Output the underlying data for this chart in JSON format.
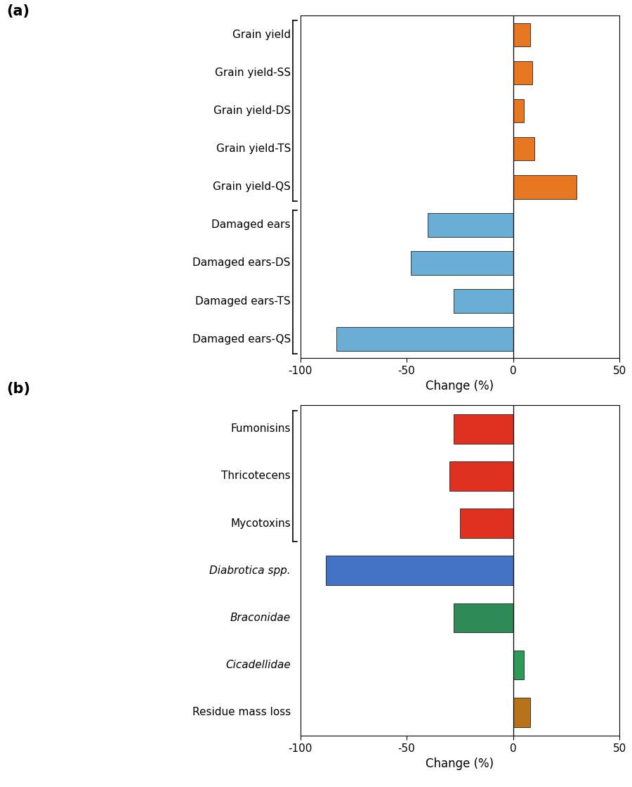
{
  "panel_a": {
    "labels": [
      "Grain yield",
      "Grain yield-SS",
      "Grain yield-DS",
      "Grain yield-TS",
      "Grain yield-QS",
      "Damaged ears",
      "Damaged ears-DS",
      "Damaged ears-TS",
      "Damaged ears-QS"
    ],
    "values": [
      8,
      9,
      5,
      10,
      30,
      -40,
      -48,
      -28,
      -83
    ],
    "colors": [
      "#E87722",
      "#E87722",
      "#E87722",
      "#E87722",
      "#E87722",
      "#6AAED6",
      "#6AAED6",
      "#6AAED6",
      "#6AAED6"
    ],
    "xlim": [
      -100,
      50
    ],
    "xticks": [
      -100,
      -50,
      0,
      50
    ],
    "xlabel": "Change (%)",
    "bracket_group1": [
      4,
      8
    ],
    "bracket_group2": [
      0,
      3
    ]
  },
  "panel_b": {
    "labels": [
      "Fumonisins",
      "Thricotecens",
      "Mycotoxins",
      "Diabrotica spp.",
      "Braconidae",
      "Cicadellidae",
      "Residue mass loss"
    ],
    "values": [
      -28,
      -30,
      -25,
      -88,
      -28,
      5,
      8
    ],
    "colors": [
      "#E03020",
      "#E03020",
      "#E03020",
      "#4472C4",
      "#2E8B57",
      "#2D9B57",
      "#B8731A"
    ],
    "italic": [
      false,
      false,
      false,
      true,
      true,
      true,
      false
    ],
    "xlim": [
      -100,
      50
    ],
    "xticks": [
      -100,
      -50,
      0,
      50
    ],
    "xlabel": "Change (%)",
    "bracket_group1": [
      4,
      6
    ]
  },
  "background_color": "#FFFFFF",
  "panel_a_label": "(a)",
  "panel_b_label": "(b)",
  "label_fontsize": 11,
  "tick_fontsize": 11,
  "xlabel_fontsize": 12,
  "bar_height": 0.62
}
